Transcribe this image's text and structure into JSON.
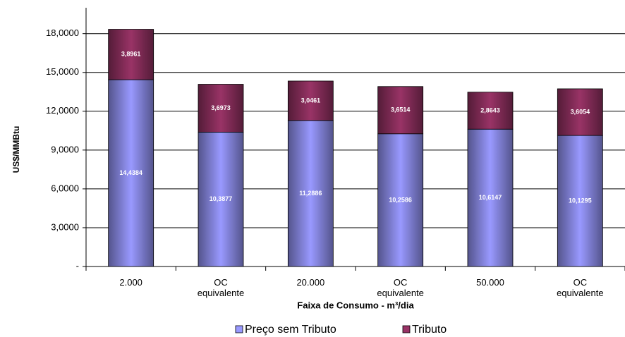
{
  "chart_data": {
    "type": "stacked_bar",
    "y_label": "US$/MMBtu",
    "x_label": "Faixa de Consumo  - m³/dia",
    "categories": [
      "2.000",
      "OC equivalente",
      "20.000",
      "OC equivalente",
      "50.000",
      "OC equivalente"
    ],
    "series": [
      {
        "name": "Preço sem Tributo",
        "color": "#9999ff",
        "values": [
          14.4384,
          10.3877,
          11.2886,
          10.2586,
          10.6147,
          10.1295
        ],
        "value_labels": [
          "14,4384",
          "10,3877",
          "11,2886",
          "10,2586",
          "10,6147",
          "10,1295"
        ]
      },
      {
        "name": "Tributo",
        "color": "#993366",
        "values": [
          3.8961,
          3.6973,
          3.0461,
          3.6514,
          2.8643,
          3.6054
        ],
        "value_labels": [
          "3,8961",
          "3,6973",
          "3,0461",
          "3,6514",
          "2,8643",
          "3,6054"
        ]
      }
    ],
    "ylim": [
      0,
      20
    ],
    "yticks": [
      {
        "value": 0,
        "label": "-"
      },
      {
        "value": 3,
        "label": "3,0000"
      },
      {
        "value": 6,
        "label": "6,0000"
      },
      {
        "value": 9,
        "label": "9,0000"
      },
      {
        "value": 12,
        "label": "12,0000"
      },
      {
        "value": 15,
        "label": "15,0000"
      },
      {
        "value": 18,
        "label": "18,0000"
      }
    ],
    "grid": true,
    "legend": "bottom"
  }
}
